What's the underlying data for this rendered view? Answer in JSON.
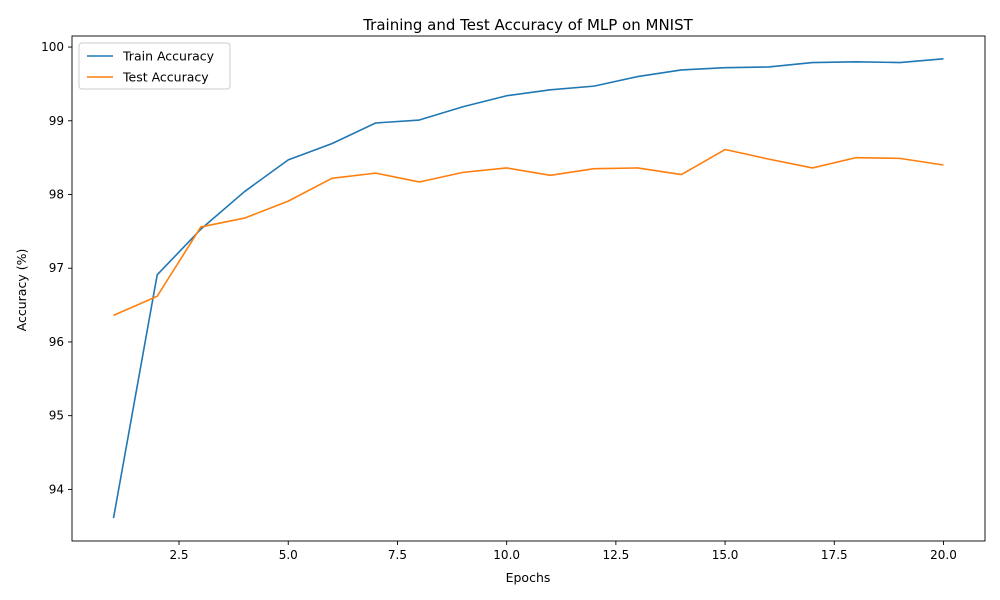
{
  "chart_data": {
    "type": "line",
    "title": "Training and Test Accuracy of MLP on MNIST",
    "xlabel": "Epochs",
    "ylabel": "Accuracy (%)",
    "x": [
      1,
      2,
      3,
      4,
      5,
      6,
      7,
      8,
      9,
      10,
      11,
      12,
      13,
      14,
      15,
      16,
      17,
      18,
      19,
      20
    ],
    "series": [
      {
        "name": "Train Accuracy",
        "color": "#1f77b4",
        "values": [
          93.61,
          96.91,
          97.53,
          98.04,
          98.47,
          98.69,
          98.97,
          99.01,
          99.19,
          99.34,
          99.42,
          99.47,
          99.6,
          99.69,
          99.72,
          99.73,
          99.79,
          99.8,
          99.79,
          99.84
        ]
      },
      {
        "name": "Test Accuracy",
        "color": "#ff7f0e",
        "values": [
          96.36,
          96.62,
          97.56,
          97.68,
          97.91,
          98.22,
          98.29,
          98.17,
          98.3,
          98.36,
          98.26,
          98.35,
          98.36,
          98.27,
          98.61,
          98.48,
          98.36,
          98.5,
          98.49,
          98.4
        ]
      }
    ],
    "xlim": [
      0.05,
      20.95
    ],
    "ylim": [
      93.3,
      100.15
    ],
    "xticks": [
      2.5,
      5.0,
      7.5,
      10.0,
      12.5,
      15.0,
      17.5,
      20.0
    ],
    "xtick_labels": [
      "2.5",
      "5.0",
      "7.5",
      "10.0",
      "12.5",
      "15.0",
      "17.5",
      "20.0"
    ],
    "yticks": [
      94,
      95,
      96,
      97,
      98,
      99,
      100
    ],
    "ytick_labels": [
      "94",
      "95",
      "96",
      "97",
      "98",
      "99",
      "100"
    ],
    "legend_position": "upper-left",
    "grid": false
  }
}
